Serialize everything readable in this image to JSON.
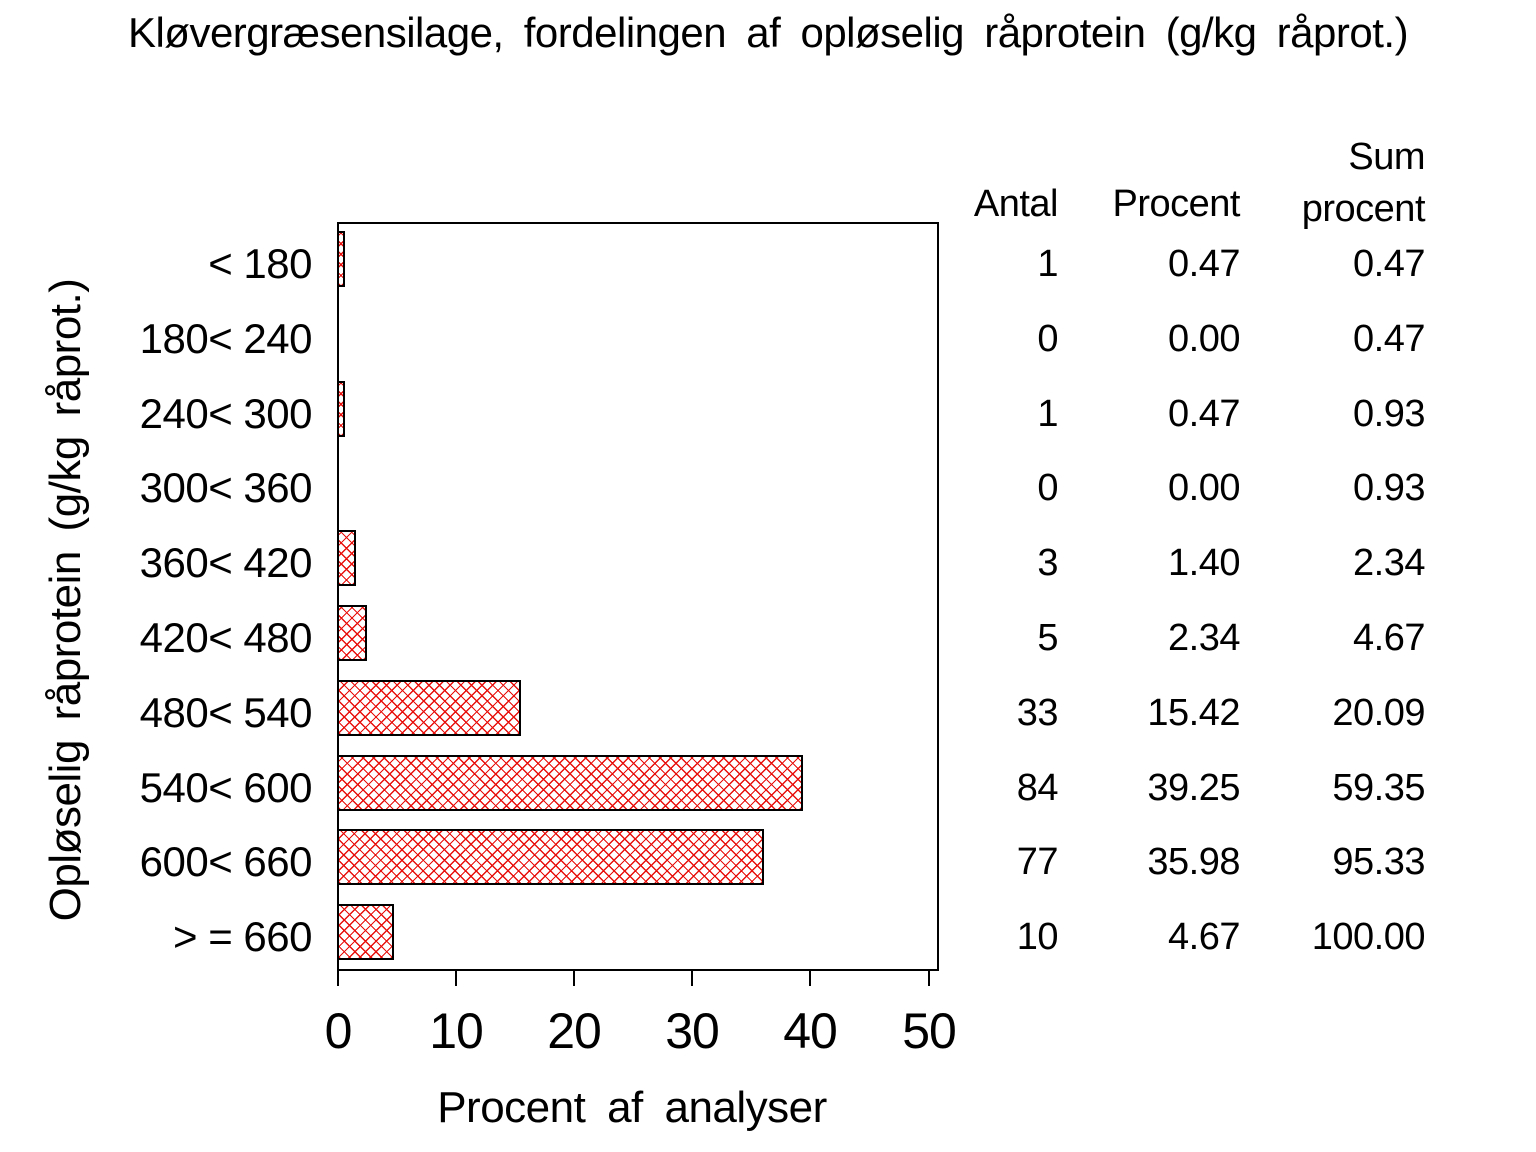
{
  "title": "Kløvergræsensilage, fordelingen af opløselig råprotein (g/kg råprot.)",
  "chart_data": {
    "type": "bar",
    "orientation": "horizontal",
    "title": "Kløvergræsensilage, fordelingen af opløselig råprotein (g/kg råprot.)",
    "categories": [
      "< 180",
      "180< 240",
      "240< 300",
      "300< 360",
      "360< 420",
      "420< 480",
      "480< 540",
      "540< 600",
      "600< 660",
      "> = 660"
    ],
    "values": [
      0.47,
      0.0,
      0.47,
      0.0,
      1.4,
      2.34,
      15.42,
      39.25,
      35.98,
      4.67
    ],
    "xlabel": "Procent af analyser",
    "ylabel": "Opløselig råprotein (g/kg råprot.)",
    "xlim": [
      0,
      50
    ],
    "xticks": [
      "0",
      "10",
      "20",
      "30",
      "40",
      "50"
    ],
    "grid": false,
    "bar_fill_style": "red crosshatch",
    "bar_hatch_color": "#e8100c",
    "bar_border_color": "#000000",
    "frame_color": "#000000",
    "background_color": "#ffffff"
  },
  "table": {
    "col_antal": "Antal",
    "col_procent": "Procent",
    "col_sum_line1": "Sum",
    "col_sum_line2": "procent",
    "antal": [
      "1",
      "0",
      "1",
      "0",
      "3",
      "5",
      "33",
      "84",
      "77",
      "10"
    ],
    "procent": [
      "0.47",
      "0.00",
      "0.47",
      "0.00",
      "1.40",
      "2.34",
      "15.42",
      "39.25",
      "35.98",
      "4.67"
    ],
    "sum_procent": [
      "0.47",
      "0.47",
      "0.93",
      "0.93",
      "2.34",
      "4.67",
      "20.09",
      "59.35",
      "95.33",
      "100.00"
    ]
  }
}
